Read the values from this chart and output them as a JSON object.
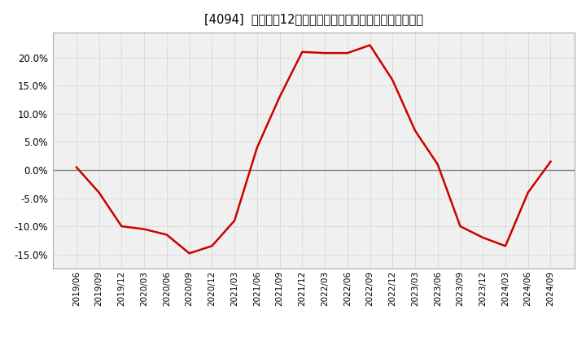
{
  "title": "[4094]  売上高の12か月移動合計の対前年同期増減率の推移",
  "line_color": "#cc0000",
  "background_color": "#ffffff",
  "plot_bg_color": "#f0f0f0",
  "grid_color": "#bbbbbb",
  "zero_line_color": "#888888",
  "ylim": [
    -0.175,
    0.245
  ],
  "yticks": [
    -0.15,
    -0.1,
    -0.05,
    0.0,
    0.05,
    0.1,
    0.15,
    0.2
  ],
  "dates": [
    "2019/06",
    "2019/09",
    "2019/12",
    "2020/03",
    "2020/06",
    "2020/09",
    "2020/12",
    "2021/03",
    "2021/06",
    "2021/09",
    "2021/12",
    "2022/03",
    "2022/06",
    "2022/09",
    "2022/12",
    "2023/03",
    "2023/06",
    "2023/09",
    "2023/12",
    "2024/03",
    "2024/06",
    "2024/09"
  ],
  "values": [
    0.005,
    -0.04,
    -0.1,
    -0.105,
    -0.115,
    -0.148,
    -0.135,
    -0.09,
    0.04,
    0.13,
    0.21,
    0.208,
    0.208,
    0.222,
    0.16,
    0.07,
    0.01,
    -0.1,
    -0.12,
    -0.135,
    -0.04,
    0.015
  ]
}
